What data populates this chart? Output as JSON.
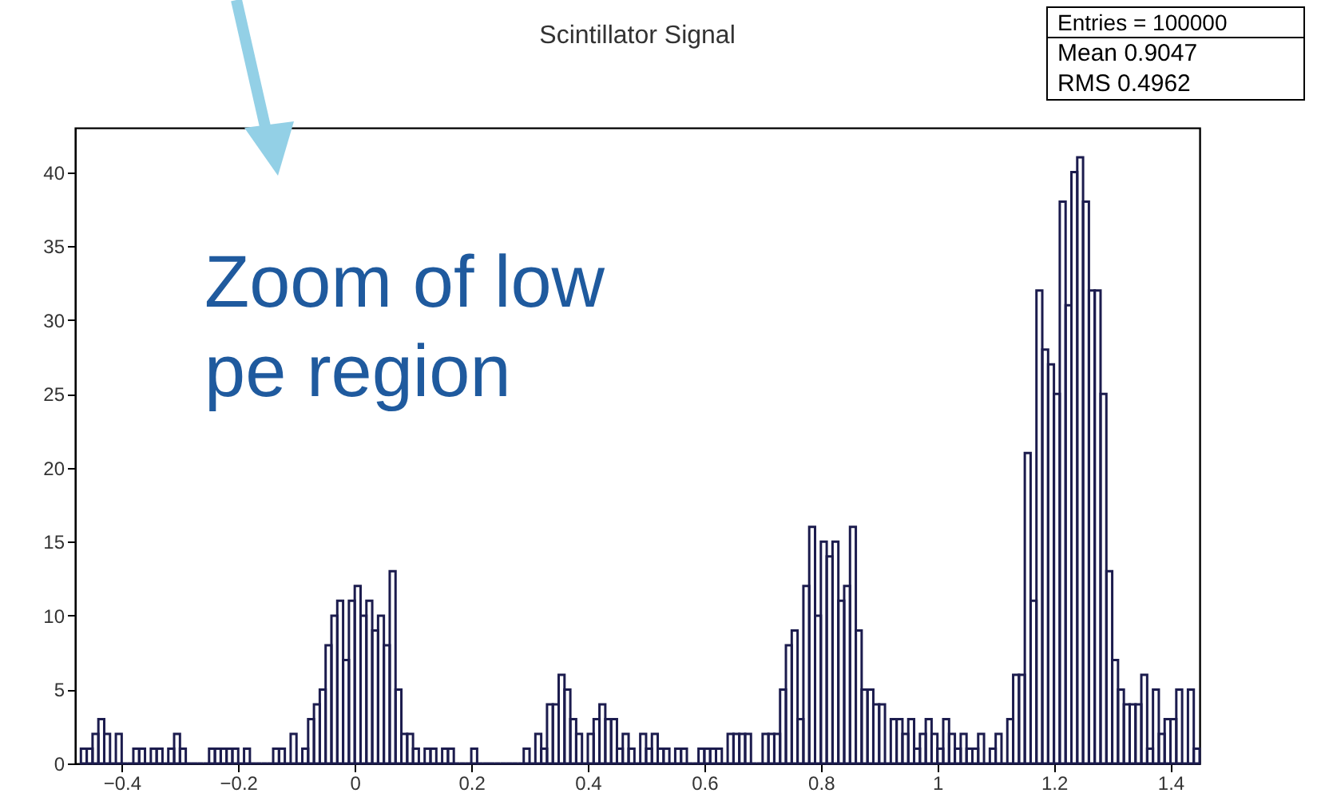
{
  "chart_data": {
    "type": "histogram",
    "title": "Scintillator Signal",
    "annotations": [
      "Zoom of low pe region",
      "Entries = 100000",
      "Mean 0.9047",
      "RMS 0.4962"
    ],
    "color": "#1c1c4e",
    "bins": [
      -0.47,
      -0.46,
      -0.45,
      -0.44,
      -0.43,
      -0.42,
      -0.41,
      -0.4,
      -0.39,
      -0.38,
      -0.37,
      -0.36,
      -0.35,
      -0.34,
      -0.33,
      -0.32,
      -0.31,
      -0.3,
      -0.29,
      -0.28,
      -0.27,
      -0.26,
      -0.25,
      -0.24,
      -0.23,
      -0.22,
      -0.21,
      -0.2,
      -0.19,
      -0.18,
      -0.17,
      -0.16,
      -0.15,
      -0.14,
      -0.13,
      -0.12,
      -0.11,
      -0.1,
      -0.09,
      -0.08,
      -0.07,
      -0.06,
      -0.05,
      -0.04,
      -0.03,
      -0.02,
      -0.01,
      0,
      0.01,
      0.02,
      0.03,
      0.04,
      0.05,
      0.06,
      0.07,
      0.08,
      0.09,
      0.1,
      0.11,
      0.12,
      0.13,
      0.14,
      0.15,
      0.16,
      0.17,
      0.18,
      0.19,
      0.2,
      0.21,
      0.22,
      0.23,
      0.24,
      0.25,
      0.26,
      0.27,
      0.28,
      0.29,
      0.3,
      0.31,
      0.32,
      0.33,
      0.34,
      0.35,
      0.36,
      0.37,
      0.38,
      0.39,
      0.4,
      0.41,
      0.42,
      0.43,
      0.44,
      0.45,
      0.46,
      0.47,
      0.48,
      0.49,
      0.5,
      0.51,
      0.52,
      0.53,
      0.54,
      0.55,
      0.56,
      0.57,
      0.58,
      0.59,
      0.6,
      0.61,
      0.62,
      0.63,
      0.64,
      0.65,
      0.66,
      0.67,
      0.68,
      0.69,
      0.7,
      0.71,
      0.72,
      0.73,
      0.74,
      0.75,
      0.76,
      0.77,
      0.78,
      0.79,
      0.8,
      0.81,
      0.82,
      0.83,
      0.84,
      0.85,
      0.86,
      0.87,
      0.88,
      0.89,
      0.9,
      0.91,
      0.92,
      0.93,
      0.94,
      0.95,
      0.96,
      0.97,
      0.98,
      0.99,
      1,
      1.01,
      1.02,
      1.03,
      1.04,
      1.05,
      1.06,
      1.07,
      1.08,
      1.09,
      1.1,
      1.11,
      1.12,
      1.13,
      1.14,
      1.15,
      1.16,
      1.17,
      1.18,
      1.19,
      1.2,
      1.21,
      1.22,
      1.23,
      1.24,
      1.25,
      1.26,
      1.27,
      1.28,
      1.29,
      1.3,
      1.31,
      1.32,
      1.33,
      1.34,
      1.35,
      1.36,
      1.37,
      1.38,
      1.39,
      1.4,
      1.41,
      1.42,
      1.43,
      1.44,
      1.45
    ],
    "values": [
      1,
      1,
      2,
      3,
      2,
      0,
      2,
      0,
      0,
      1,
      1,
      0,
      1,
      1,
      0,
      1,
      2,
      1,
      0,
      0,
      0,
      0,
      1,
      1,
      1,
      1,
      1,
      0,
      1,
      0,
      0,
      0,
      0,
      1,
      1,
      0,
      2,
      0,
      1,
      3,
      4,
      5,
      8,
      10,
      11,
      7,
      11,
      12,
      10,
      11,
      9,
      10,
      8,
      13,
      5,
      2,
      2,
      1,
      0,
      1,
      1,
      0,
      1,
      1,
      0,
      0,
      0,
      1,
      0,
      0,
      0,
      0,
      0,
      0,
      0,
      0,
      1,
      0,
      2,
      1,
      4,
      4,
      6,
      5,
      3,
      2,
      0,
      2,
      3,
      4,
      3,
      3,
      1,
      2,
      1,
      0,
      2,
      1,
      2,
      1,
      1,
      0,
      1,
      1,
      0,
      0,
      1,
      1,
      1,
      1,
      0,
      2,
      2,
      2,
      2,
      0,
      0,
      2,
      2,
      2,
      5,
      8,
      9,
      3,
      12,
      16,
      10,
      15,
      14,
      15,
      11,
      12,
      16,
      9,
      5,
      5,
      4,
      4,
      0,
      3,
      3,
      2,
      3,
      1,
      2,
      3,
      2,
      1,
      3,
      2,
      1,
      2,
      1,
      1,
      2,
      0,
      1,
      2,
      0,
      3,
      6,
      6,
      21,
      11,
      32,
      28,
      27,
      25,
      38,
      31,
      40,
      41,
      38,
      32,
      32,
      25,
      13,
      7,
      5,
      4,
      4,
      4,
      6,
      1,
      5,
      2,
      3,
      3,
      5,
      0,
      5,
      1
    ],
    "xlim": [
      -0.48,
      1.45
    ],
    "ylim": [
      0,
      43
    ],
    "xticks": [
      -0.4,
      -0.2,
      0,
      0.2,
      0.4,
      0.6,
      0.8,
      1,
      1.2,
      1.4
    ],
    "yticks": [
      0,
      5,
      10,
      15,
      20,
      25,
      30,
      35,
      40
    ]
  }
}
